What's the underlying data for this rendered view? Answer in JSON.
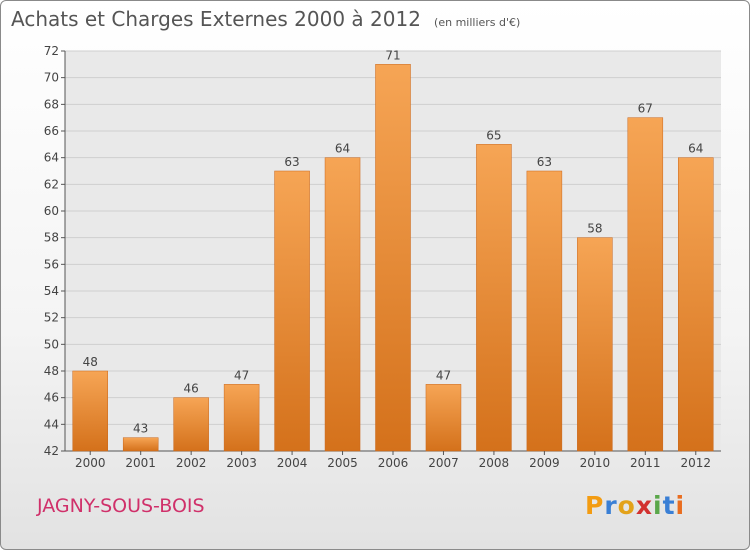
{
  "header": {
    "title": "Achats et Charges Externes 2000 à 2012",
    "subtitle": "(en milliers d'€)"
  },
  "footer": {
    "place": "JAGNY-SOUS-BOIS",
    "logo_letters": [
      "P",
      "r",
      "o",
      "x",
      "i",
      "t",
      "i"
    ],
    "logo_colors": [
      "#f39c12",
      "#3a7fd5",
      "#e3a21a",
      "#d2312f",
      "#5aa74a",
      "#3a7fd5",
      "#e96d1f"
    ]
  },
  "chart_data": {
    "type": "bar",
    "title": "Achats et Charges Externes 2000 à 2012",
    "subtitle": "(en milliers d'€)",
    "categories": [
      "2000",
      "2001",
      "2002",
      "2003",
      "2004",
      "2005",
      "2006",
      "2007",
      "2008",
      "2009",
      "2010",
      "2011",
      "2012"
    ],
    "values": [
      48,
      43,
      46,
      47,
      63,
      64,
      71,
      47,
      65,
      63,
      58,
      67,
      64
    ],
    "ylim": [
      42,
      72
    ],
    "ytick_step": 2,
    "grid": true,
    "bar_color": "#e98a33",
    "xlabel": "",
    "ylabel": ""
  }
}
